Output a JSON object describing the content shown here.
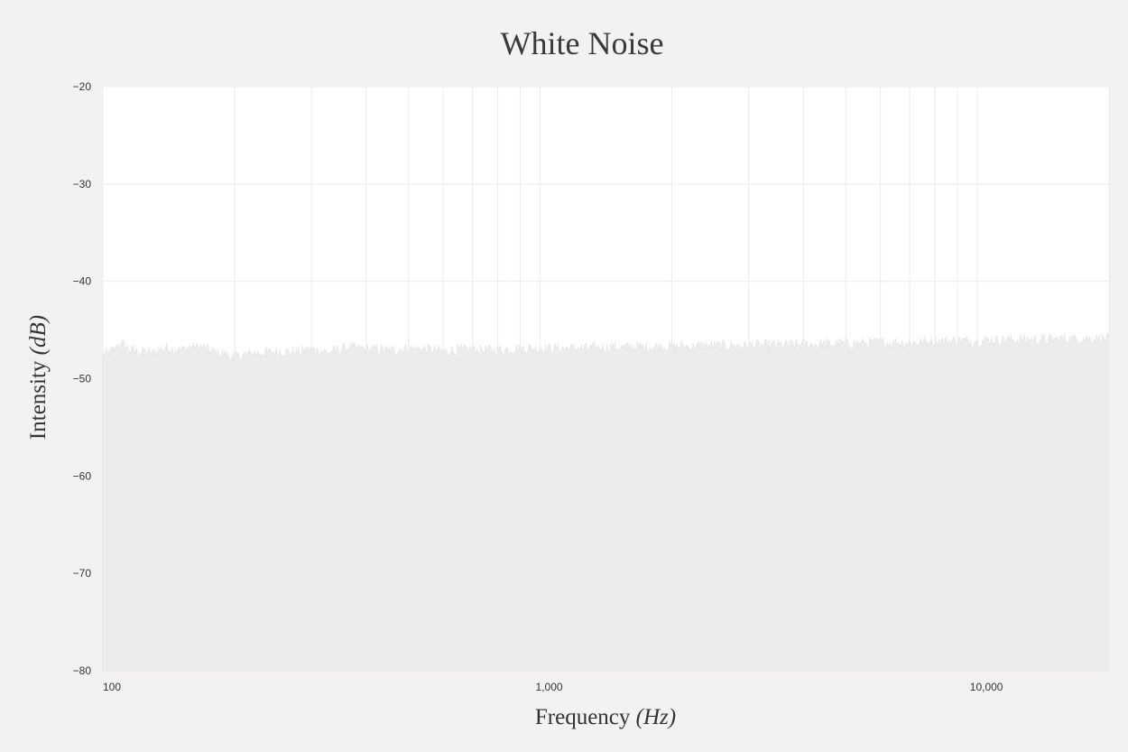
{
  "chart_data": {
    "type": "area",
    "title": "White Noise",
    "xlabel": "Frequency",
    "xlabel_unit": "(Hz)",
    "ylabel": "Intensity",
    "ylabel_unit": "(dB)",
    "x_scale": "log",
    "xlim": [
      100,
      20000
    ],
    "ylim": [
      -80,
      -20
    ],
    "x_ticks": [
      100,
      1000,
      10000
    ],
    "x_tick_labels": [
      "100",
      "1,000",
      "10,000"
    ],
    "y_ticks": [
      -20,
      -30,
      -40,
      -50,
      -60,
      -70,
      -80
    ],
    "y_tick_labels": [
      "−20",
      "−30",
      "−40",
      "−50",
      "−60",
      "−70",
      "−80"
    ],
    "grid": true,
    "series": [
      {
        "color": "#ececec",
        "x": [
          100,
          105,
          110,
          115,
          120,
          130,
          140,
          150,
          160,
          170,
          180,
          190,
          200,
          220,
          250,
          280,
          300,
          330,
          360,
          400,
          450,
          500,
          550,
          600,
          700,
          800,
          900,
          1000,
          1200,
          1500,
          2000,
          2500,
          3000,
          4000,
          5000,
          6000,
          7000,
          8000,
          9000,
          10000,
          12000,
          14000,
          16000,
          18000,
          20000
        ],
        "values": [
          -47.5,
          -47.2,
          -46.3,
          -47.0,
          -47.2,
          -47.3,
          -46.8,
          -47.1,
          -46.7,
          -46.8,
          -47.3,
          -47.5,
          -47.8,
          -47.4,
          -47.2,
          -47.3,
          -47.0,
          -47.3,
          -46.8,
          -47.0,
          -47.1,
          -46.9,
          -47.0,
          -47.2,
          -47.0,
          -47.1,
          -46.9,
          -46.9,
          -46.9,
          -46.8,
          -46.7,
          -46.6,
          -46.6,
          -46.5,
          -46.4,
          -46.3,
          -46.3,
          -46.2,
          -46.1,
          -46.1,
          -46.0,
          -46.0,
          -45.9,
          -45.9,
          -45.9
        ]
      }
    ]
  }
}
